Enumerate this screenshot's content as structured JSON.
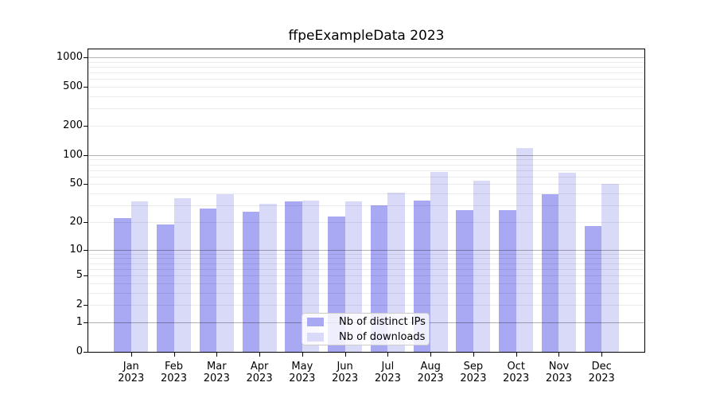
{
  "title": "ffpeExampleData 2023",
  "chart_data": {
    "type": "bar",
    "title": "ffpeExampleData 2023",
    "categories": [
      "Jan",
      "Feb",
      "Mar",
      "Apr",
      "May",
      "Jun",
      "Jul",
      "Aug",
      "Sep",
      "Oct",
      "Nov",
      "Dec"
    ],
    "x_tick_year": "2023",
    "series": [
      {
        "name": "Nb of distinct IPs",
        "color": "#a8a8f3",
        "values": [
          22,
          19,
          28,
          26,
          33,
          23,
          30,
          34,
          27,
          27,
          39,
          18
        ]
      },
      {
        "name": "Nb of downloads",
        "color": "#d9d9f8",
        "values": [
          33,
          36,
          39,
          31,
          34,
          33,
          41,
          67,
          54,
          118,
          66,
          50
        ]
      }
    ],
    "y_scale": "log10(value+1)",
    "y_ticks": [
      0,
      1,
      2,
      5,
      10,
      20,
      50,
      100,
      200,
      500,
      1000
    ],
    "ylim": [
      0,
      1250
    ],
    "grid": "horizontal, minor 2-9 per decade, major at decades, drawn above bars",
    "legend_position": "lower center",
    "xlabel": "",
    "ylabel": ""
  },
  "colors": {
    "background": "#ffffff",
    "axis": "#000000",
    "major_grid": "rgba(0,0,0,0.30)",
    "minor_grid": "rgba(0,0,0,0.08)",
    "legend_border": "#cccccc",
    "legend_background": "rgba(255,255,255,0.8)"
  }
}
